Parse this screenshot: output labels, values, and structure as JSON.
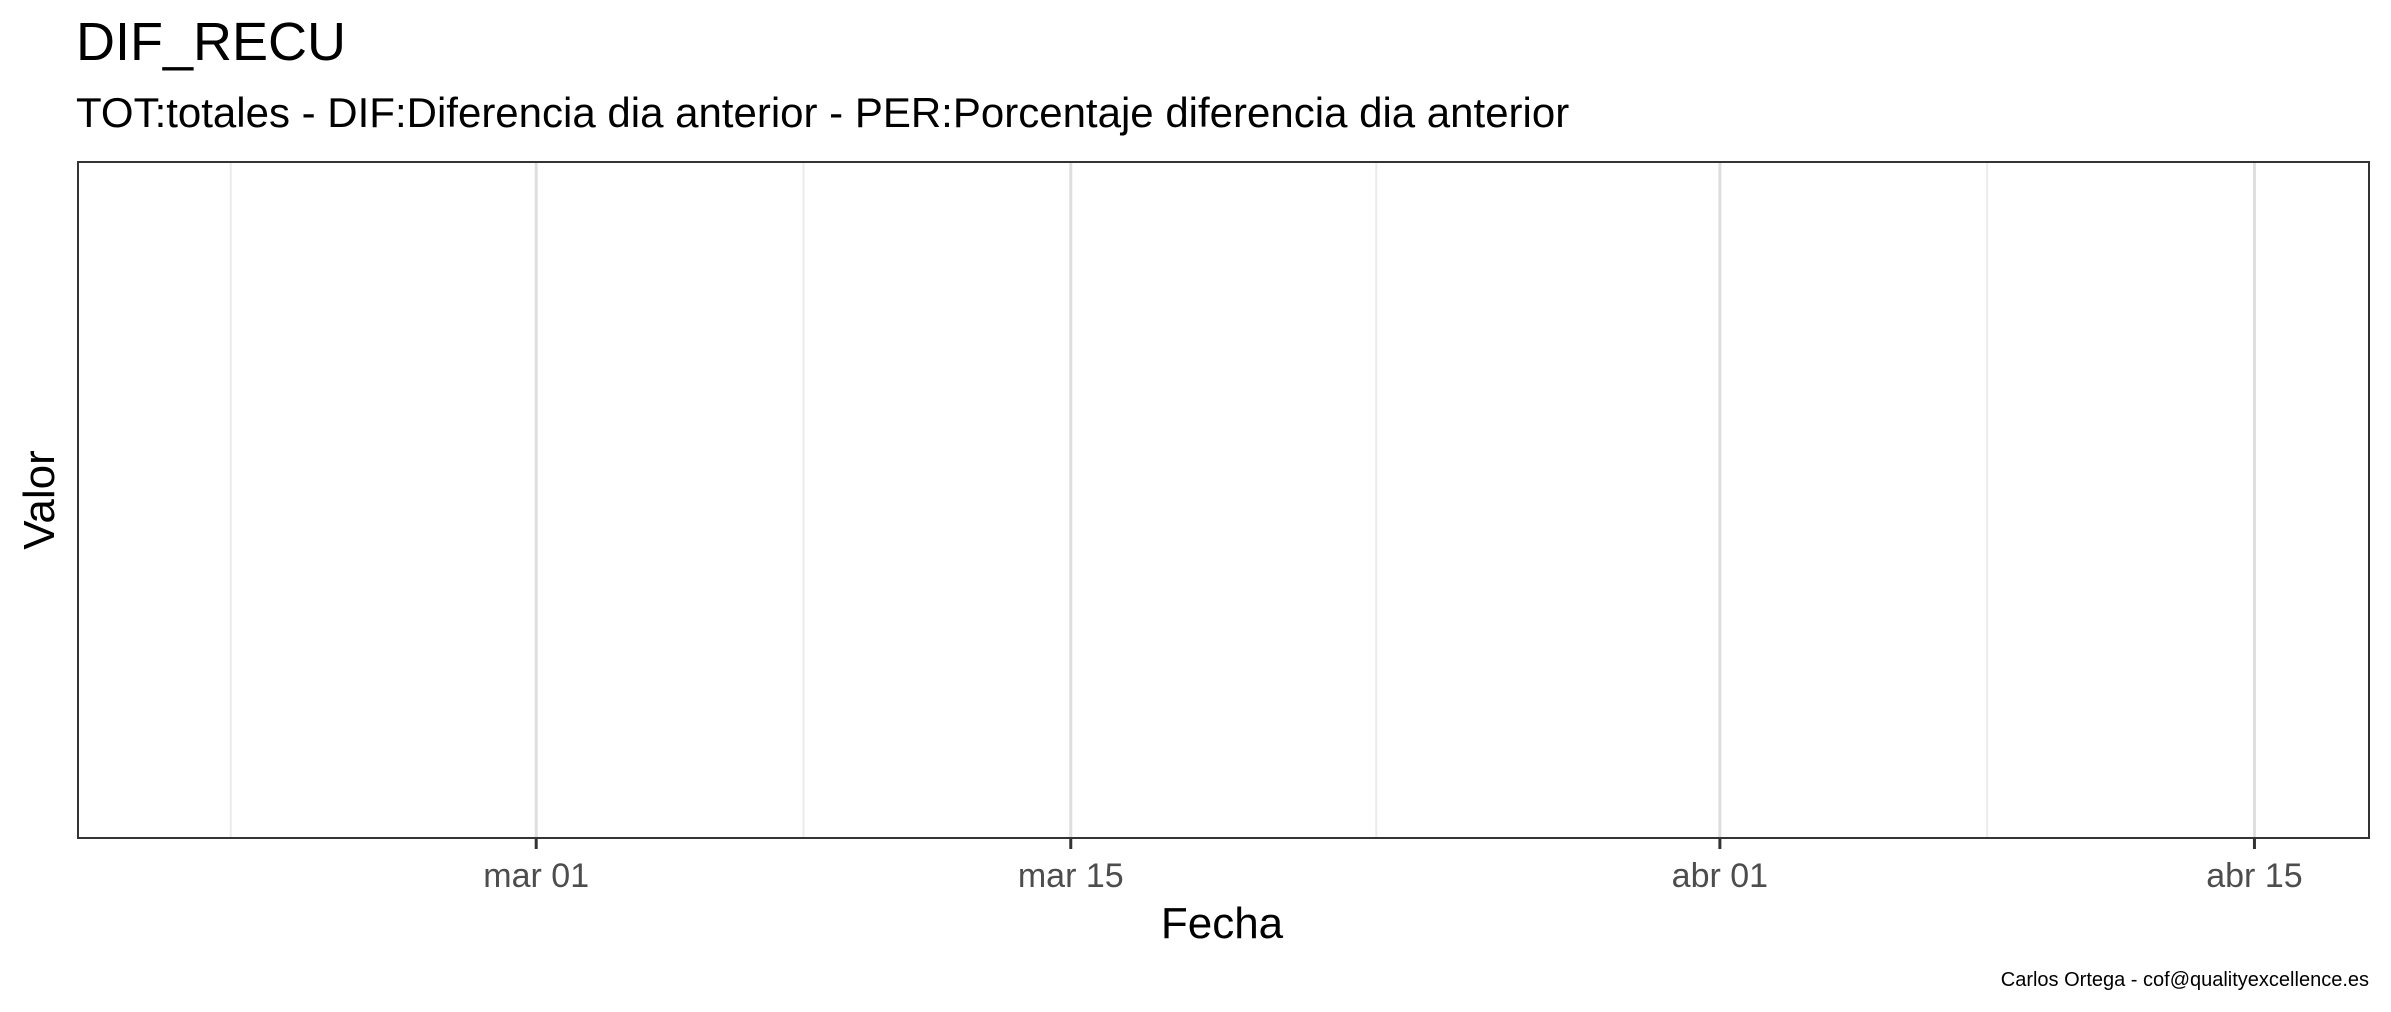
{
  "chart_data": {
    "type": "line",
    "title": "DIF_RECU",
    "subtitle": "TOT:totales - DIF:Diferencia dia anterior - PER:Porcentaje diferencia dia anterior",
    "xlabel": "Fecha",
    "ylabel": "Valor",
    "caption": "Carlos Ortega - cof@qualityexcellence.es",
    "xlim": [
      "2020-02-18",
      "2020-04-18"
    ],
    "x_ticks": [
      {
        "date": "2020-03-01",
        "label": "mar 01"
      },
      {
        "date": "2020-03-15",
        "label": "mar 15"
      },
      {
        "date": "2020-04-01",
        "label": "abr 01"
      },
      {
        "date": "2020-04-15",
        "label": "abr 15"
      }
    ],
    "x_minor_ticks": [
      "2020-02-22",
      "2020-03-08",
      "2020-03-23",
      "2020-04-08"
    ],
    "y_ticks": [],
    "series": [],
    "grid": "vertical",
    "legend": "none",
    "colors": {
      "panel_border": "#333333",
      "grid_major": "#dedede",
      "grid_minor": "#ebebeb",
      "tick_text": "#4d4d4d"
    }
  }
}
